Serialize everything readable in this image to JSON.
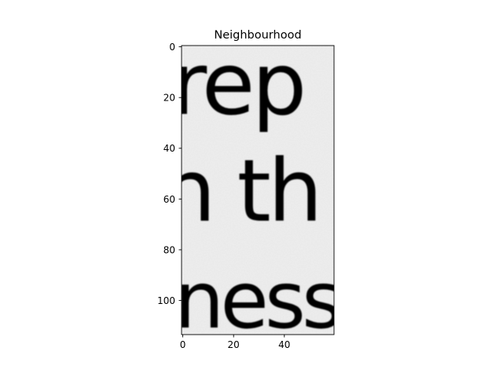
{
  "figure": {
    "title": "Neighbourhood",
    "image": {
      "width": 60,
      "height": 114,
      "colormap": "gray",
      "content": "scanned text crop",
      "lines": [
        {
          "text": "rep",
          "y": 20
        },
        {
          "text": "n th",
          "y": 62
        },
        {
          "text": "ness",
          "y": 106
        }
      ]
    },
    "axes": {
      "x": {
        "range": [
          -0.5,
          59.5
        ],
        "ticks": [
          0,
          20,
          40
        ],
        "tick_labels": [
          "0",
          "20",
          "40"
        ]
      },
      "y": {
        "range": [
          113.5,
          -0.5
        ],
        "inverted": true,
        "ticks": [
          0,
          20,
          40,
          60,
          80,
          100
        ],
        "tick_labels": [
          "0",
          "20",
          "40",
          "60",
          "80",
          "100"
        ]
      },
      "grid": false
    },
    "colors": {
      "background": "#ffffff",
      "paper": "#eeeeee",
      "ink": "#161616",
      "frame": "#000000"
    }
  }
}
